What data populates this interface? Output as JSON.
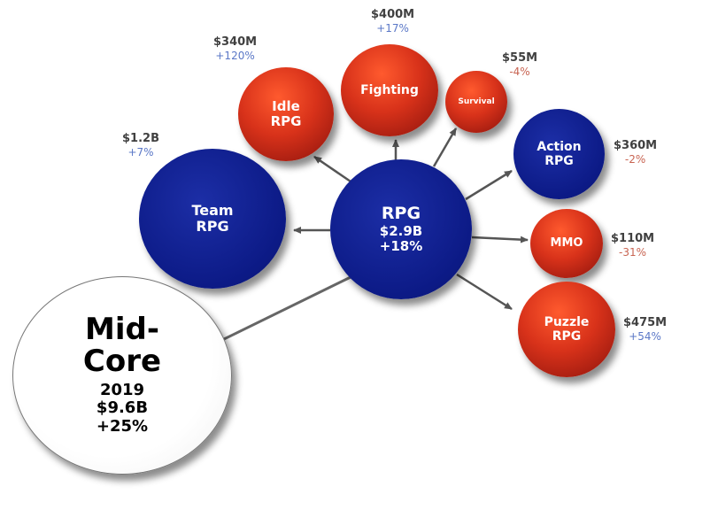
{
  "center": {
    "name": "RPG",
    "value": "$2.9B",
    "change": "+18%"
  },
  "midcore": {
    "line1": "Mid-",
    "line2": "Core",
    "year": "2019",
    "value": "$9.6B",
    "change": "+25%"
  },
  "subgenres": {
    "team_rpg": {
      "line1": "Team",
      "line2": "RPG",
      "value": "$1.2B",
      "change": "+7%",
      "trend": "up"
    },
    "idle_rpg": {
      "line1": "Idle",
      "line2": "RPG",
      "value": "$340M",
      "change": "+120%",
      "trend": "up"
    },
    "fighting": {
      "label": "Fighting",
      "value": "$400M",
      "change": "+17%",
      "trend": "up"
    },
    "survival": {
      "label": "Survival",
      "value": "$55M",
      "change": "-4%",
      "trend": "down"
    },
    "action_rpg": {
      "line1": "Action",
      "line2": "RPG",
      "value": "$360M",
      "change": "-2%",
      "trend": "down"
    },
    "mmo": {
      "label": "MMO",
      "value": "$110M",
      "change": "-31%",
      "trend": "down"
    },
    "puzzle_rpg": {
      "line1": "Puzzle",
      "line2": "RPG",
      "value": "$475M",
      "change": "+54%",
      "trend": "up"
    }
  },
  "colors": {
    "growth_bubble": "#0c1a86",
    "decline_bubble": "#d8321a",
    "positive_change": "#5b78c7",
    "negative_change": "#c86452"
  }
}
